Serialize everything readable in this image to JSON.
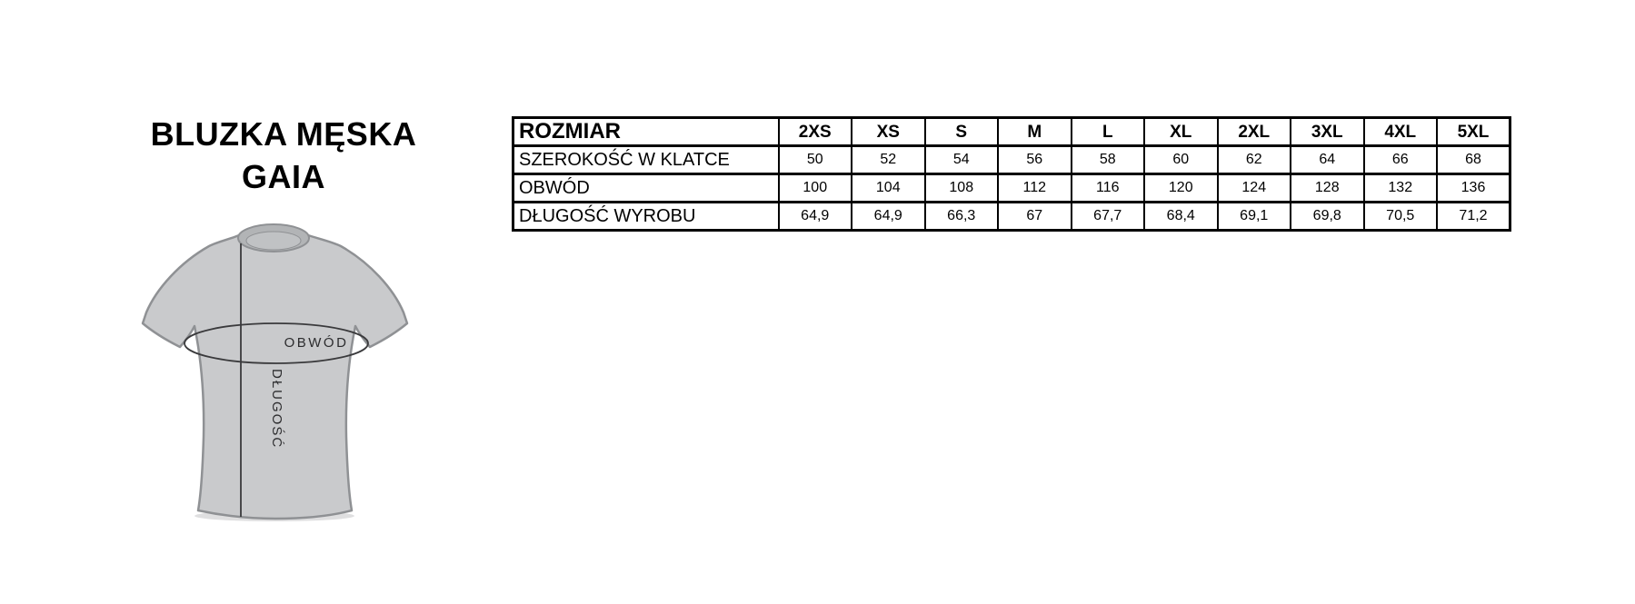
{
  "page": {
    "background": "#ffffff"
  },
  "title": {
    "line1": "BLUZKA MĘSKA",
    "line2": "GAIA"
  },
  "diagram": {
    "circumference_label": "OBWÓD",
    "length_label": "DŁUGOŚĆ",
    "colors": {
      "shirt_fill": "#c9cacc",
      "shirt_outline": "#8f9194",
      "collar_fill": "#b2b4b6",
      "collar_inner_fill": "#c0c2c4",
      "shadow": "#b7b9bb",
      "measure_line": "#3a3a3c",
      "label_text": "#2c2c2e"
    }
  },
  "size_table": {
    "header_label": "ROZMIAR",
    "sizes": [
      "2XS",
      "XS",
      "S",
      "M",
      "L",
      "XL",
      "2XL",
      "3XL",
      "4XL",
      "5XL"
    ],
    "rows": [
      {
        "label": "SZEROKOŚĆ W KLATCE",
        "values": [
          "50",
          "52",
          "54",
          "56",
          "58",
          "60",
          "62",
          "64",
          "66",
          "68"
        ]
      },
      {
        "label": "OBWÓD",
        "values": [
          "100",
          "104",
          "108",
          "112",
          "116",
          "120",
          "124",
          "128",
          "132",
          "136"
        ]
      },
      {
        "label": "DŁUGOŚĆ WYROBU",
        "values": [
          "64,9",
          "64,9",
          "66,3",
          "67",
          "67,7",
          "68,4",
          "69,1",
          "69,8",
          "70,5",
          "71,2"
        ]
      }
    ],
    "border_color": "#000000"
  }
}
